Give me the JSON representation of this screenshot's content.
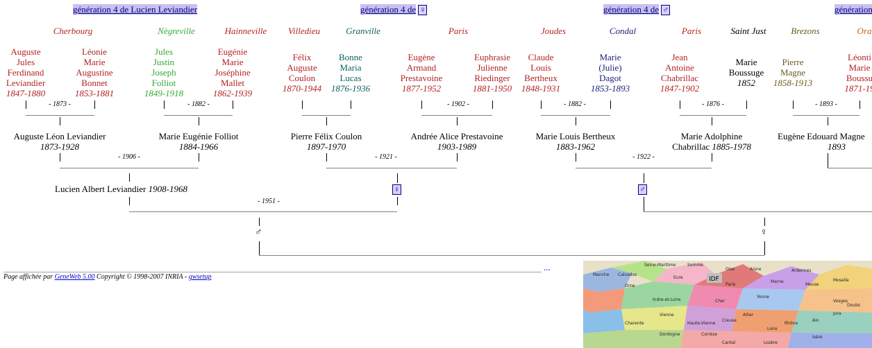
{
  "headers": {
    "h1": "génération 4 de Lucien Leviandier",
    "h2": "génération 4 de",
    "h3": "génération 4 de",
    "h4": "génération",
    "female_symbol": "♀",
    "male_symbol": "♂"
  },
  "places": [
    "Cherbourg",
    "Nègreville",
    "Hainneville",
    "Villedieu",
    "Granville",
    "Paris",
    "Joudes",
    "Condal",
    "Paris",
    "Saint Just",
    "Brezons",
    "Ora"
  ],
  "ancestors": [
    {
      "name": [
        "Auguste",
        "Jules",
        "Ferdinand",
        "Leviandier"
      ],
      "dates": "1847-1880"
    },
    {
      "name": [
        "Léonie",
        "Marie",
        "Augustine",
        "Bonnet"
      ],
      "dates": "1853-1881"
    },
    {
      "name": [
        "Jules",
        "Justin",
        "Joseph",
        "Folliot"
      ],
      "dates": "1849-1918"
    },
    {
      "name": [
        "Eugénie",
        "Marie",
        "Joséphine",
        "Mallet"
      ],
      "dates": "1862-1939"
    },
    {
      "name": [
        "Félix",
        "Auguste",
        "Coulon"
      ],
      "dates": "1870-1944"
    },
    {
      "name": [
        "Bonne",
        "Maria",
        "Lucas"
      ],
      "dates": "1876-1936"
    },
    {
      "name": [
        "Eugène",
        "Armand",
        "Prestavoine"
      ],
      "dates": "1877-1952"
    },
    {
      "name": [
        "Euphrasie",
        "Julienne",
        "Riedinger"
      ],
      "dates": "1881-1950"
    },
    {
      "name": [
        "Claude",
        "Louis",
        "Bertheux"
      ],
      "dates": "1848-1931"
    },
    {
      "name": [
        "Marie",
        "(Julie)",
        "Dagot"
      ],
      "dates": "1853-1893"
    },
    {
      "name": [
        "Jean",
        "Antoine",
        "Chabrillac"
      ],
      "dates": "1847-1902"
    },
    {
      "name": [
        "Marie",
        "Boussuge"
      ],
      "dates": "1852"
    },
    {
      "name": [
        "Pierre",
        "Magne"
      ],
      "dates": "1858-1913"
    },
    {
      "name": [
        "Léonti",
        "Marie",
        "Boussu"
      ],
      "dates": "1871-19"
    }
  ],
  "marriages1": [
    "- 1873 -",
    "- 1882 -",
    "- 1902 -",
    "- 1882 -",
    "- 1876 -",
    "- 1893 -"
  ],
  "grandparents": [
    {
      "name": "Auguste Léon Leviandier",
      "dates": "1873-1928"
    },
    {
      "name": "Marie Eugénie Folliot",
      "dates": "1884-1966"
    },
    {
      "name": "Pierre Félix Coulon",
      "dates": "1897-1970"
    },
    {
      "name": "Andrée Alice Prestavoine",
      "dates": "1903-1989"
    },
    {
      "name": "Marie Louis Bertheux",
      "dates": "1883-1962"
    },
    {
      "name": "Marie Adolphine",
      "name2": "Chabrillac",
      "dates": "1885-1978"
    },
    {
      "name": "Eugène Edouard Magne",
      "dates": "1893"
    }
  ],
  "marriages2": [
    "- 1906 -",
    "- 1921 -",
    "- 1922 -"
  ],
  "parent": {
    "name": "Lucien Albert Leviandier",
    "dates": "1908-1968"
  },
  "marriage3": "- 1951 -",
  "symbols": {
    "male": "♂",
    "female": "♀"
  },
  "ellipsis": "...",
  "footer": {
    "prefix": "Page affichée par",
    "link": "GeneWeb 5.00",
    "middle": "Copyright © 1998-2007 INRIA -",
    "setup": "gwsetup"
  },
  "map_labels": [
    "Seine-Maritime",
    "Manche",
    "Calvados",
    "Somme",
    "Aisne",
    "Ardennes",
    "Marne",
    "Moselle",
    "Vosges",
    "Indre-et-Loire",
    "Cher",
    "Haute-Vienne",
    "Creuse",
    "Corrèze",
    "Dordogne",
    "Cantal",
    "Lozère",
    "Isère",
    "Paris",
    "IDF",
    "Orne",
    "Eure",
    "Oise",
    "Meuse",
    "Vienne",
    "Charente",
    "Allier",
    "Rhône",
    "Loire",
    "Ain",
    "Jura",
    "Doubs",
    "Yonne"
  ]
}
